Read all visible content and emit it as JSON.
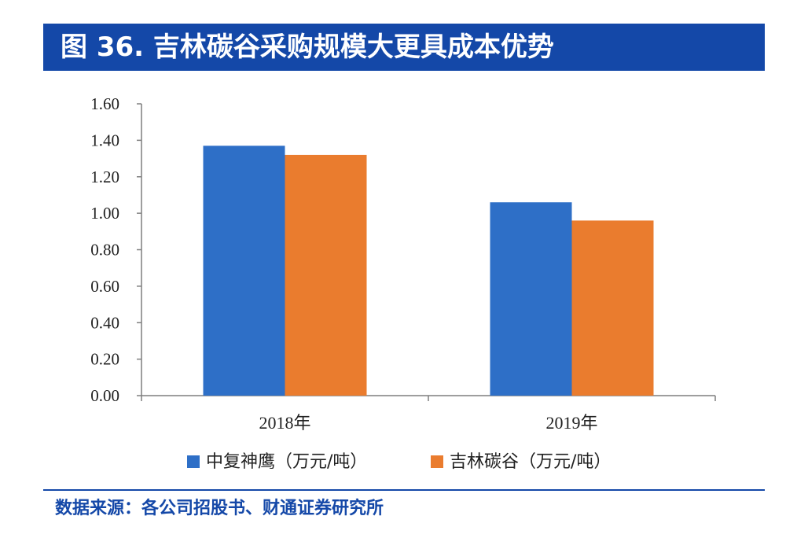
{
  "header": {
    "title": "图 36. 吉林碳谷采购规模大更具成本优势"
  },
  "footer": {
    "source": "数据来源：各公司招股书、财通证券研究所"
  },
  "chart_data": {
    "type": "bar",
    "categories": [
      "2018年",
      "2019年"
    ],
    "series": [
      {
        "name": "中复神鹰（万元/吨）",
        "color": "#2e6fc7",
        "values": [
          1.37,
          1.06
        ]
      },
      {
        "name": "吉林碳谷（万元/吨）",
        "color": "#ea7c2e",
        "values": [
          1.32,
          0.96
        ]
      }
    ],
    "yticks": [
      "0.00",
      "0.20",
      "0.40",
      "0.60",
      "0.80",
      "1.00",
      "1.20",
      "1.40",
      "1.60"
    ],
    "ylim": [
      0,
      1.6
    ],
    "legend_position": "bottom",
    "grid": false
  }
}
